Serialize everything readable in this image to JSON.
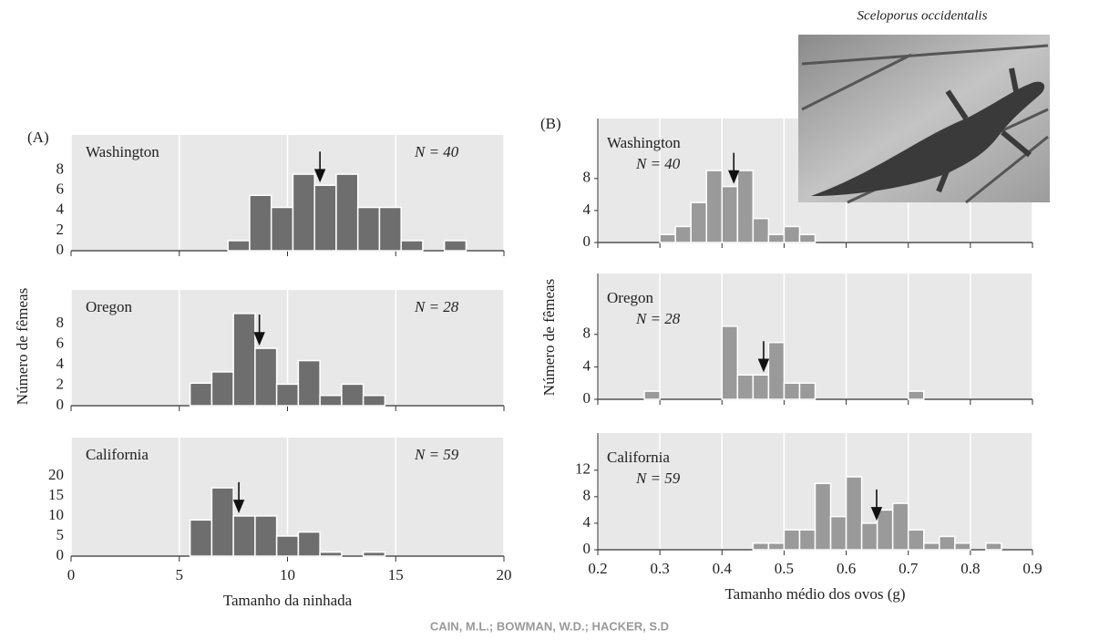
{
  "figure": {
    "photo_caption": "Sceloporus occidentalis",
    "credit": "CAIN, M.L.; BOWMAN, W.D.; HACKER, S.D"
  },
  "panels": [
    {
      "label": "(A)",
      "ylabel": "Número de fêmeas"
    },
    {
      "label": "(B)",
      "ylabel": "Número de fêmeas"
    }
  ],
  "chart_data": [
    {
      "type": "histogram",
      "title": "Washington",
      "annotation": "N = 40",
      "color": "#6e6e6e",
      "bins": [
        7.25,
        8.25,
        9.25,
        10.25,
        11.25,
        12.25,
        13.25,
        14.25,
        15.25,
        16.25,
        17.25,
        18.25
      ],
      "values": [
        1,
        5.5,
        4.3,
        7.6,
        6.5,
        7.6,
        4.3,
        4.3,
        1,
        0,
        1
      ],
      "arrow_x": 11.5,
      "xlim": [
        0,
        20
      ],
      "xticks": [
        0,
        5,
        10,
        15,
        20
      ],
      "ylim": [
        0,
        11.5
      ],
      "yticks": [
        0,
        2,
        4,
        6,
        8
      ]
    },
    {
      "type": "histogram",
      "title": "Oregon",
      "annotation": "N = 28",
      "color": "#6e6e6e",
      "bins": [
        5.5,
        6.5,
        7.5,
        8.5,
        9.5,
        10.5,
        11.5,
        12.5,
        13.5,
        14.5
      ],
      "values": [
        2.2,
        3.3,
        9,
        5.6,
        2.1,
        4.4,
        1,
        2.1,
        1
      ],
      "arrow_x": 8.7,
      "xlim": [
        0,
        20
      ],
      "xticks": [
        0,
        5,
        10,
        15,
        20
      ],
      "ylim": [
        0,
        11.3
      ],
      "yticks": [
        0,
        2,
        4,
        6,
        8
      ]
    },
    {
      "type": "histogram",
      "title": "California",
      "annotation": "N = 59",
      "color": "#6e6e6e",
      "bins": [
        5.5,
        6.5,
        7.5,
        8.5,
        9.5,
        10.5,
        11.5,
        12.5,
        13.5,
        14.5
      ],
      "values": [
        9,
        17,
        10,
        10,
        5,
        6,
        1,
        0,
        1
      ],
      "arrow_x": 7.75,
      "xlim": [
        0,
        20
      ],
      "xticks": [
        0,
        5,
        10,
        15,
        20
      ],
      "ylim": [
        0,
        29.5
      ],
      "yticks": [
        0,
        5,
        10,
        15,
        20
      ],
      "xlabel": "Tamanho da ninhada"
    },
    {
      "type": "histogram",
      "title": "Washington",
      "annotation": "N = 40",
      "color": "#9a9a9a",
      "bins": [
        0.3,
        0.325,
        0.35,
        0.375,
        0.4,
        0.425,
        0.45,
        0.475,
        0.5,
        0.525,
        0.55
      ],
      "values": [
        1,
        2,
        5,
        9,
        7,
        9,
        3,
        1,
        2,
        1
      ],
      "arrow_x": 0.419,
      "xlim": [
        0.2,
        0.9
      ],
      "xticks": [
        0.2,
        0.3,
        0.4,
        0.5,
        0.6,
        0.7,
        0.8,
        0.9
      ],
      "ylim": [
        0,
        15.5
      ],
      "yticks": [
        0,
        4,
        8
      ]
    },
    {
      "type": "histogram",
      "title": "Oregon",
      "annotation": "N = 28",
      "color": "#9a9a9a",
      "bins": [
        0.275,
        0.3,
        0.325,
        0.35,
        0.375,
        0.4,
        0.425,
        0.45,
        0.475,
        0.5,
        0.525,
        0.55,
        0.575,
        0.6,
        0.625,
        0.65,
        0.675,
        0.7,
        0.725
      ],
      "values": [
        1,
        0,
        0,
        0,
        0,
        9,
        3,
        3,
        7,
        2,
        2,
        0,
        0,
        0,
        0,
        0,
        0,
        1
      ],
      "arrow_x": 0.467,
      "xlim": [
        0.2,
        0.9
      ],
      "xticks": [
        0.2,
        0.3,
        0.4,
        0.5,
        0.6,
        0.7,
        0.8,
        0.9
      ],
      "ylim": [
        0,
        15.5
      ],
      "yticks": [
        0,
        4,
        8
      ]
    },
    {
      "type": "histogram",
      "title": "California",
      "annotation": "N = 59",
      "color": "#9a9a9a",
      "bins": [
        0.45,
        0.475,
        0.5,
        0.525,
        0.55,
        0.575,
        0.6,
        0.625,
        0.65,
        0.675,
        0.7,
        0.725,
        0.75,
        0.775,
        0.8,
        0.825,
        0.85
      ],
      "values": [
        1,
        1,
        3,
        3,
        10,
        5,
        11,
        4,
        6,
        7,
        3,
        1,
        2,
        1,
        0,
        1
      ],
      "arrow_x": 0.649,
      "xlim": [
        0.2,
        0.9
      ],
      "xticks": [
        0.2,
        0.3,
        0.4,
        0.5,
        0.6,
        0.7,
        0.8,
        0.9
      ],
      "ylim": [
        0,
        17.6
      ],
      "yticks": [
        0,
        4,
        8,
        12
      ],
      "xlabel": "Tamanho médio dos ovos (g)"
    }
  ]
}
